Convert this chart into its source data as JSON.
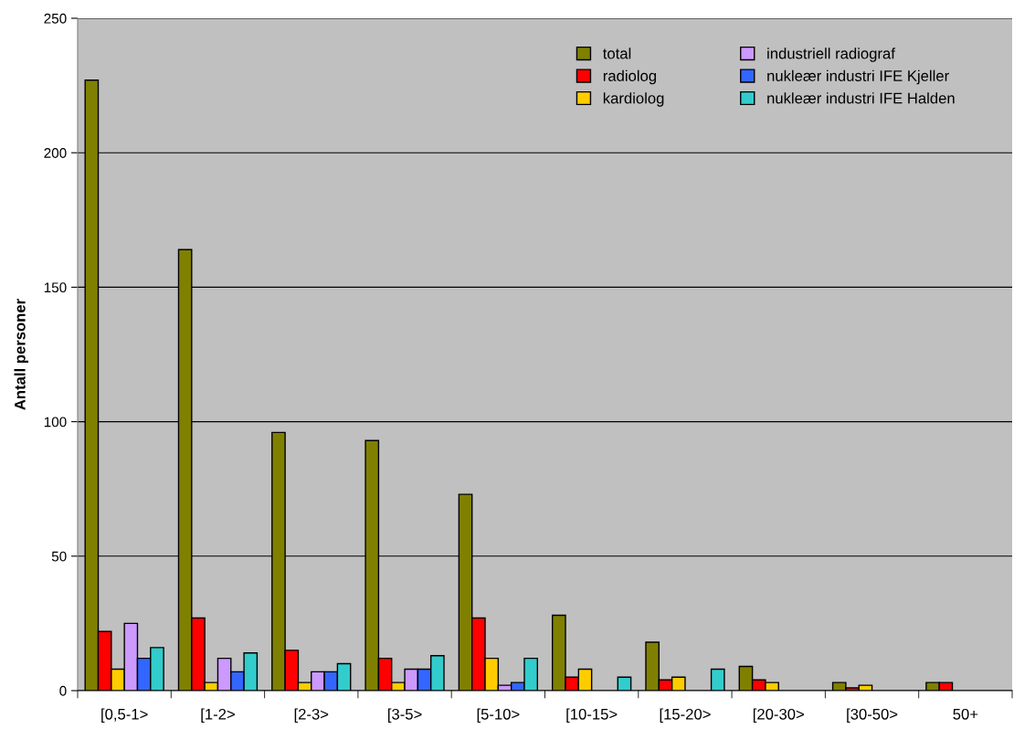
{
  "chart_data": {
    "type": "bar",
    "ylabel": "Antall personer",
    "categories": [
      "[0,5-1>",
      "[1-2>",
      "[2-3>",
      "[3-5>",
      "[5-10>",
      "[10-15>",
      "[15-20>",
      "[20-30>",
      "[30-50>",
      "50+"
    ],
    "series": [
      {
        "name": "total",
        "color": "#808000",
        "values": [
          227,
          164,
          96,
          93,
          73,
          28,
          18,
          9,
          3,
          3
        ]
      },
      {
        "name": "radiolog",
        "color": "#ff0000",
        "values": [
          22,
          27,
          15,
          12,
          27,
          5,
          4,
          4,
          1,
          3
        ]
      },
      {
        "name": "kardiolog",
        "color": "#ffcc00",
        "values": [
          8,
          3,
          3,
          3,
          12,
          8,
          5,
          3,
          2,
          null
        ]
      },
      {
        "name": "industriell radiograf",
        "color": "#cc99ff",
        "values": [
          25,
          12,
          7,
          8,
          2,
          null,
          null,
          null,
          null,
          null
        ]
      },
      {
        "name": "nukleær industri IFE Kjeller",
        "color": "#3366ff",
        "values": [
          12,
          7,
          7,
          8,
          3,
          null,
          null,
          null,
          null,
          null
        ]
      },
      {
        "name": "nukleær industri IFE Halden",
        "color": "#33cccc",
        "values": [
          16,
          14,
          10,
          13,
          12,
          5,
          8,
          null,
          null,
          null
        ]
      }
    ],
    "ylim": [
      0,
      250
    ],
    "yticks": [
      0,
      50,
      100,
      150,
      200,
      250
    ],
    "grid": "y",
    "legend": "top right"
  }
}
